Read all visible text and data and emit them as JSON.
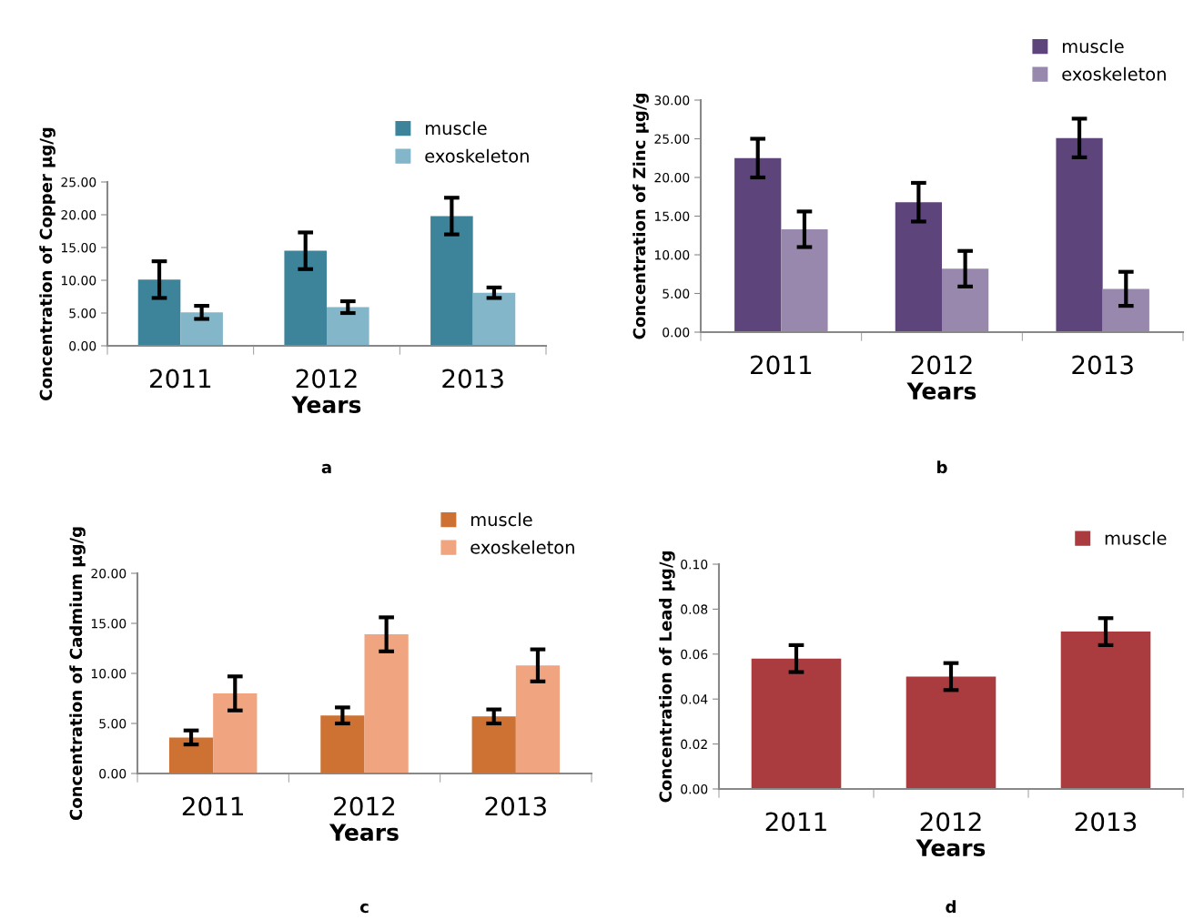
{
  "chart_data": [
    {
      "type": "bar",
      "categories": [
        "2011",
        "2012",
        "2013"
      ],
      "xlabel": "Years",
      "ylabel": "Concentration of Copper µg/g",
      "annotations": [
        "a"
      ],
      "legend": "top right",
      "ylim": [
        0,
        25
      ],
      "yticks": [
        {
          "value": 0,
          "label": "0.00"
        },
        {
          "value": 5,
          "label": "5.00"
        },
        {
          "value": 10,
          "label": "10.00"
        },
        {
          "value": 15,
          "label": "15.00"
        },
        {
          "value": 20,
          "label": "20.00"
        },
        {
          "value": 25,
          "label": "25.00"
        }
      ],
      "series": [
        {
          "name": "muscle",
          "color": "#3d849b",
          "values": [
            10.1,
            14.5,
            19.8
          ],
          "errors": [
            2.8,
            2.8,
            2.8
          ]
        },
        {
          "name": "exoskeleton",
          "color": "#84b6c9",
          "values": [
            5.1,
            5.9,
            8.1
          ],
          "errors": [
            1.0,
            0.9,
            0.8
          ]
        }
      ]
    },
    {
      "type": "bar",
      "categories": [
        "2011",
        "2012",
        "2013"
      ],
      "xlabel": "Years",
      "ylabel": "Concentration of Zinc µg/g",
      "annotations": [
        "b"
      ],
      "legend": "top right",
      "ylim": [
        0,
        30
      ],
      "yticks": [
        {
          "value": 0,
          "label": "0.00"
        },
        {
          "value": 5,
          "label": "5.00"
        },
        {
          "value": 10,
          "label": "10.00"
        },
        {
          "value": 15,
          "label": "15.00"
        },
        {
          "value": 20,
          "label": "20.00"
        },
        {
          "value": 25,
          "label": "25.00"
        },
        {
          "value": 30,
          "label": "30.00"
        }
      ],
      "series": [
        {
          "name": "muscle",
          "color": "#5d447b",
          "values": [
            22.5,
            16.8,
            25.1
          ],
          "errors": [
            2.5,
            2.5,
            2.5
          ]
        },
        {
          "name": "exoskeleton",
          "color": "#9888ad",
          "values": [
            13.3,
            8.2,
            5.6
          ],
          "errors": [
            2.3,
            2.3,
            2.2
          ]
        }
      ]
    },
    {
      "type": "bar",
      "categories": [
        "2011",
        "2012",
        "2013"
      ],
      "xlabel": "Years",
      "ylabel": "Concentration of Cadmium µg/g",
      "annotations": [
        "c"
      ],
      "legend": "top right",
      "ylim": [
        0,
        20
      ],
      "yticks": [
        {
          "value": 0,
          "label": "0.00"
        },
        {
          "value": 5,
          "label": "5.00"
        },
        {
          "value": 10,
          "label": "10.00"
        },
        {
          "value": 15,
          "label": "15.00"
        },
        {
          "value": 20,
          "label": "20.00"
        }
      ],
      "series": [
        {
          "name": "muscle",
          "color": "#cd7232",
          "values": [
            3.6,
            5.8,
            5.7
          ],
          "errors": [
            0.7,
            0.8,
            0.7
          ]
        },
        {
          "name": "exoskeleton",
          "color": "#f0a47f",
          "values": [
            8.0,
            13.9,
            10.8
          ],
          "errors": [
            1.7,
            1.7,
            1.6
          ]
        }
      ]
    },
    {
      "type": "bar",
      "categories": [
        "2011",
        "2012",
        "2013"
      ],
      "xlabel": "Years",
      "ylabel": "Concentration of Lead µg/g",
      "annotations": [
        "d"
      ],
      "legend": "top right",
      "ylim": [
        0,
        0.1
      ],
      "yticks": [
        {
          "value": 0,
          "label": "0.00"
        },
        {
          "value": 0.02,
          "label": "0.02"
        },
        {
          "value": 0.04,
          "label": "0.04"
        },
        {
          "value": 0.06,
          "label": "0.06"
        },
        {
          "value": 0.08,
          "label": "0.08"
        },
        {
          "value": 0.1,
          "label": "0.10"
        }
      ],
      "series": [
        {
          "name": "muscle",
          "color": "#aa3c40",
          "values": [
            0.058,
            0.05,
            0.07
          ],
          "errors": [
            0.006,
            0.006,
            0.006
          ]
        }
      ]
    }
  ]
}
